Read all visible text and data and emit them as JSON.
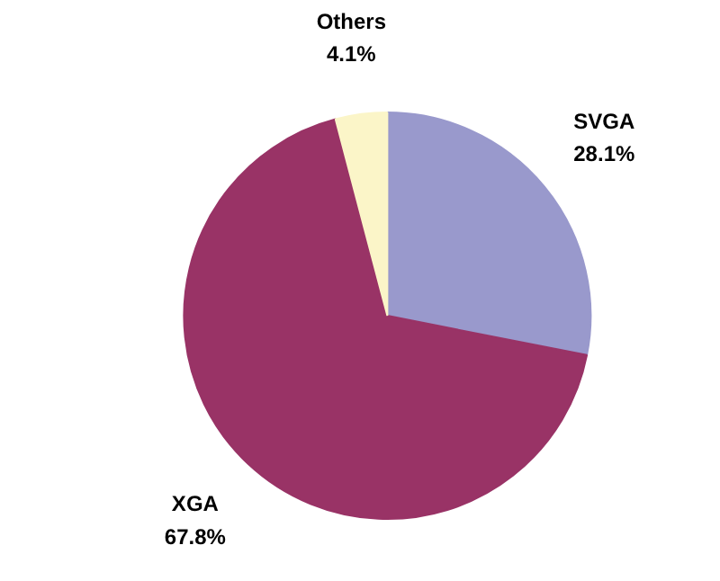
{
  "chart_data": {
    "type": "pie",
    "categories": [
      "SVGA",
      "XGA",
      "Others"
    ],
    "values": [
      28.1,
      67.8,
      4.1
    ],
    "colors": [
      "#9999cc",
      "#993366",
      "#fbf5c8"
    ],
    "value_labels": [
      "28.1%",
      "67.8%",
      "4.1%"
    ]
  }
}
